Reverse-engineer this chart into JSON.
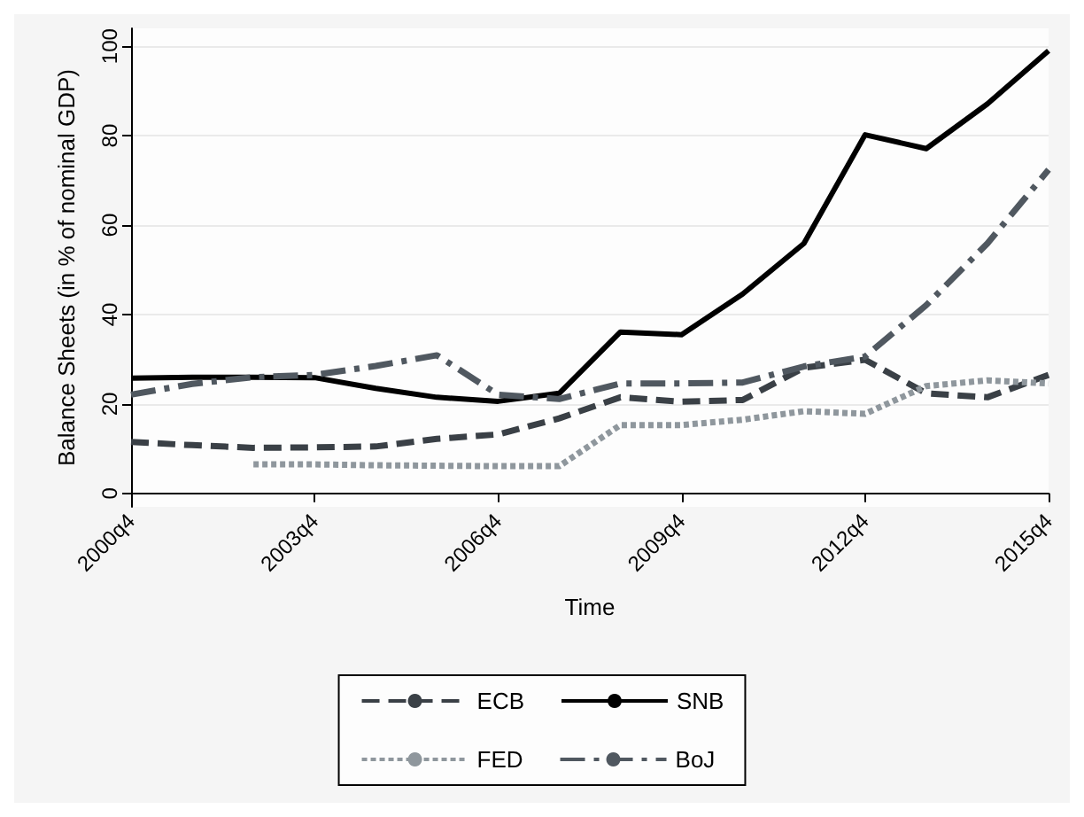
{
  "chart_data": {
    "type": "line",
    "xlabel": "Time",
    "ylabel": "Balance Sheets (in % of nominal GDP)",
    "categories": [
      "2000q4",
      null,
      null,
      "2003q4",
      null,
      null,
      "2006q4",
      null,
      null,
      "2009q4",
      null,
      null,
      "2012q4",
      null,
      null,
      "2015q4"
    ],
    "series": [
      {
        "name": "ECB",
        "color": "#3a4046",
        "line_style": "dashed",
        "values": [
          11.5,
          10.8,
          10.2,
          10.3,
          10.5,
          12.2,
          13.2,
          16.8,
          21.5,
          20.5,
          20.9,
          28.1,
          29.9,
          22.4,
          21.5,
          26.5
        ]
      },
      {
        "name": "SNB",
        "color": "#000000",
        "line_style": "solid",
        "values": [
          25.8,
          26,
          26,
          25.9,
          23.5,
          21.5,
          20.6,
          22.4,
          36.1,
          35.5,
          44.6,
          55.9,
          80.2,
          77.1,
          87.1,
          99
        ]
      },
      {
        "name": "FED",
        "color": "#8f979d",
        "line_style": "dotted",
        "values": [
          null,
          null,
          6.5,
          6.5,
          6.3,
          6.2,
          6.1,
          6.1,
          15.3,
          15.3,
          16.5,
          18.4,
          17.8,
          24,
          25.3,
          24.6
        ]
      },
      {
        "name": "BoJ",
        "color": "#505860",
        "line_style": "dashdot",
        "values": [
          22.1,
          24.5,
          26,
          26.5,
          28.5,
          30.9,
          22.1,
          21.1,
          24.6,
          24.6,
          24.8,
          28.4,
          30.6,
          42.1,
          55.9,
          72.4
        ]
      }
    ],
    "ylim": [
      -3,
      104
    ],
    "yticks": [
      0,
      20,
      40,
      60,
      80,
      100
    ],
    "grid": "y",
    "legend": "bottom",
    "marker": "none"
  }
}
